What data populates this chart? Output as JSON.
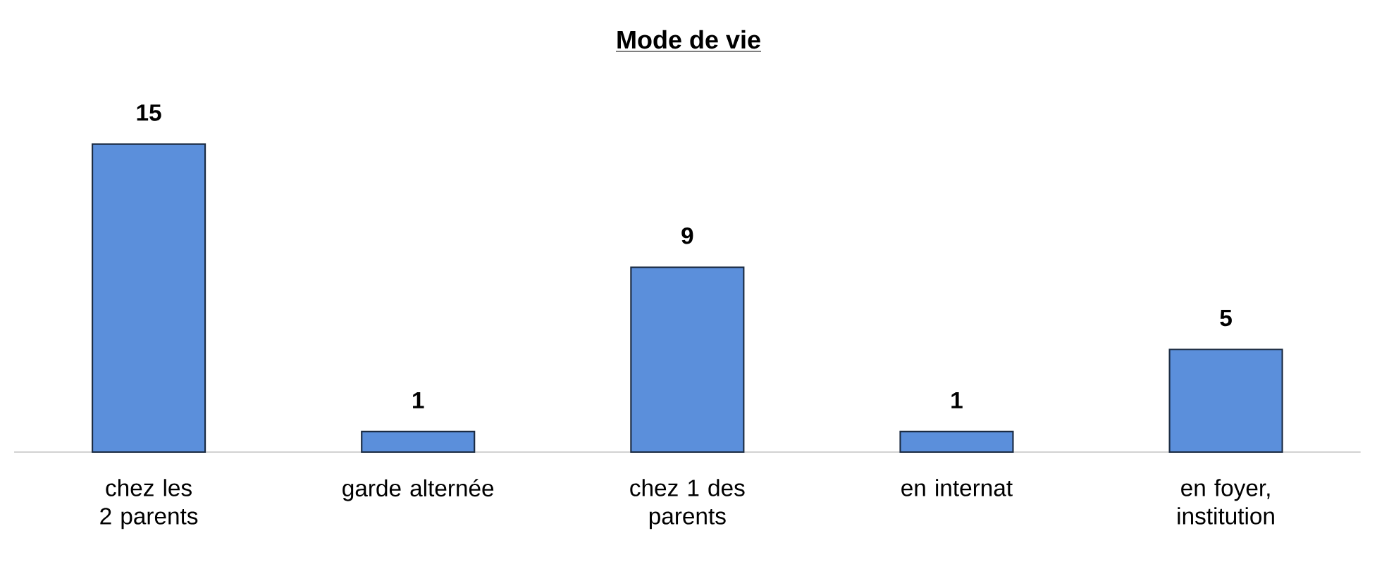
{
  "chart_data": {
    "type": "bar",
    "title": "Mode de vie",
    "categories": [
      "chez les 2 parents",
      "garde alternée",
      "chez 1 des parents",
      "en internat",
      "en foyer, institution"
    ],
    "values": [
      15,
      1,
      9,
      1,
      5
    ],
    "color": "#5b8fdb",
    "data_labels": true
  }
}
